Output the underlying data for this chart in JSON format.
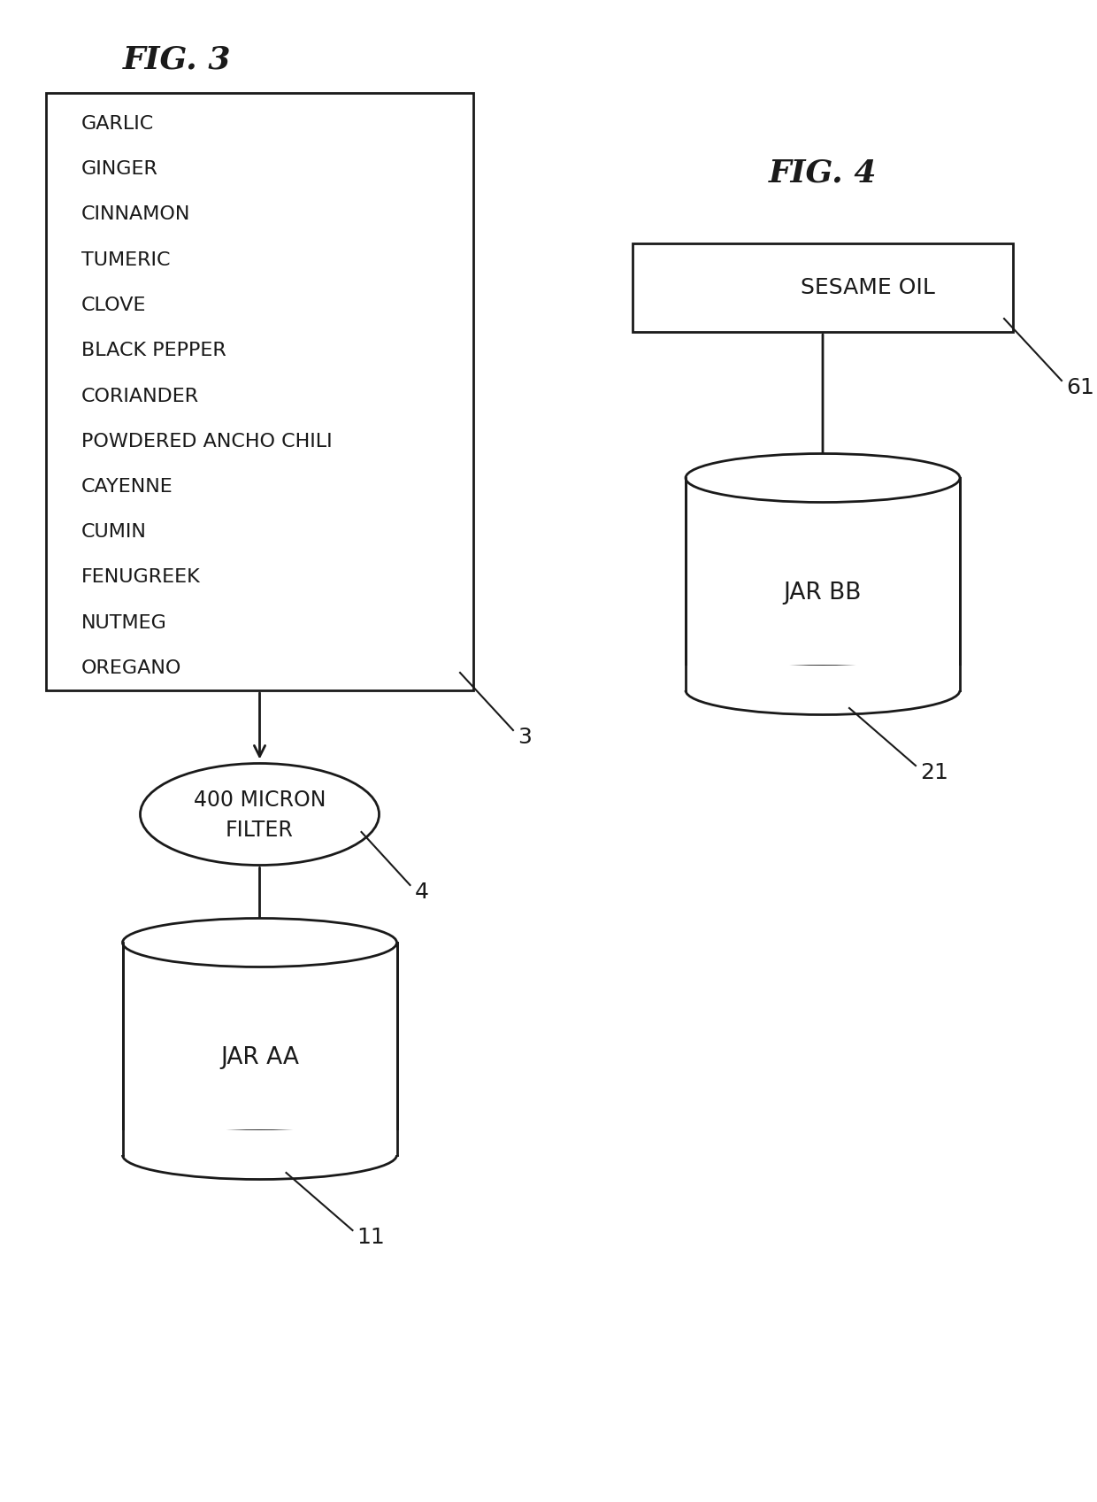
{
  "fig3_title": "FIG. 3",
  "fig4_title": "FIG. 4",
  "fig3_ingredients": [
    "GARLIC",
    "GINGER",
    "CINNAMON",
    "TUMERIC",
    "CLOVE",
    "BLACK PEPPER",
    "CORIANDER",
    "POWDERED ANCHO CHILI",
    "CAYENNE",
    "CUMIN",
    "FENUGREEK",
    "NUTMEG",
    "OREGANO"
  ],
  "fig3_box_label": "3",
  "fig3_filter_ref": "4",
  "fig3_jar_label": "JAR AA",
  "fig3_jar_ref": "11",
  "fig4_rect_label": "SESAME OIL",
  "fig4_rect_ref": "61",
  "fig4_jar_label": "JAR BB",
  "fig4_jar_ref": "21",
  "bg_color": "#ffffff",
  "line_color": "#1a1a1a",
  "title_fontsize": 26,
  "label_fontsize": 17,
  "ref_fontsize": 18,
  "ingredient_fontsize": 16
}
